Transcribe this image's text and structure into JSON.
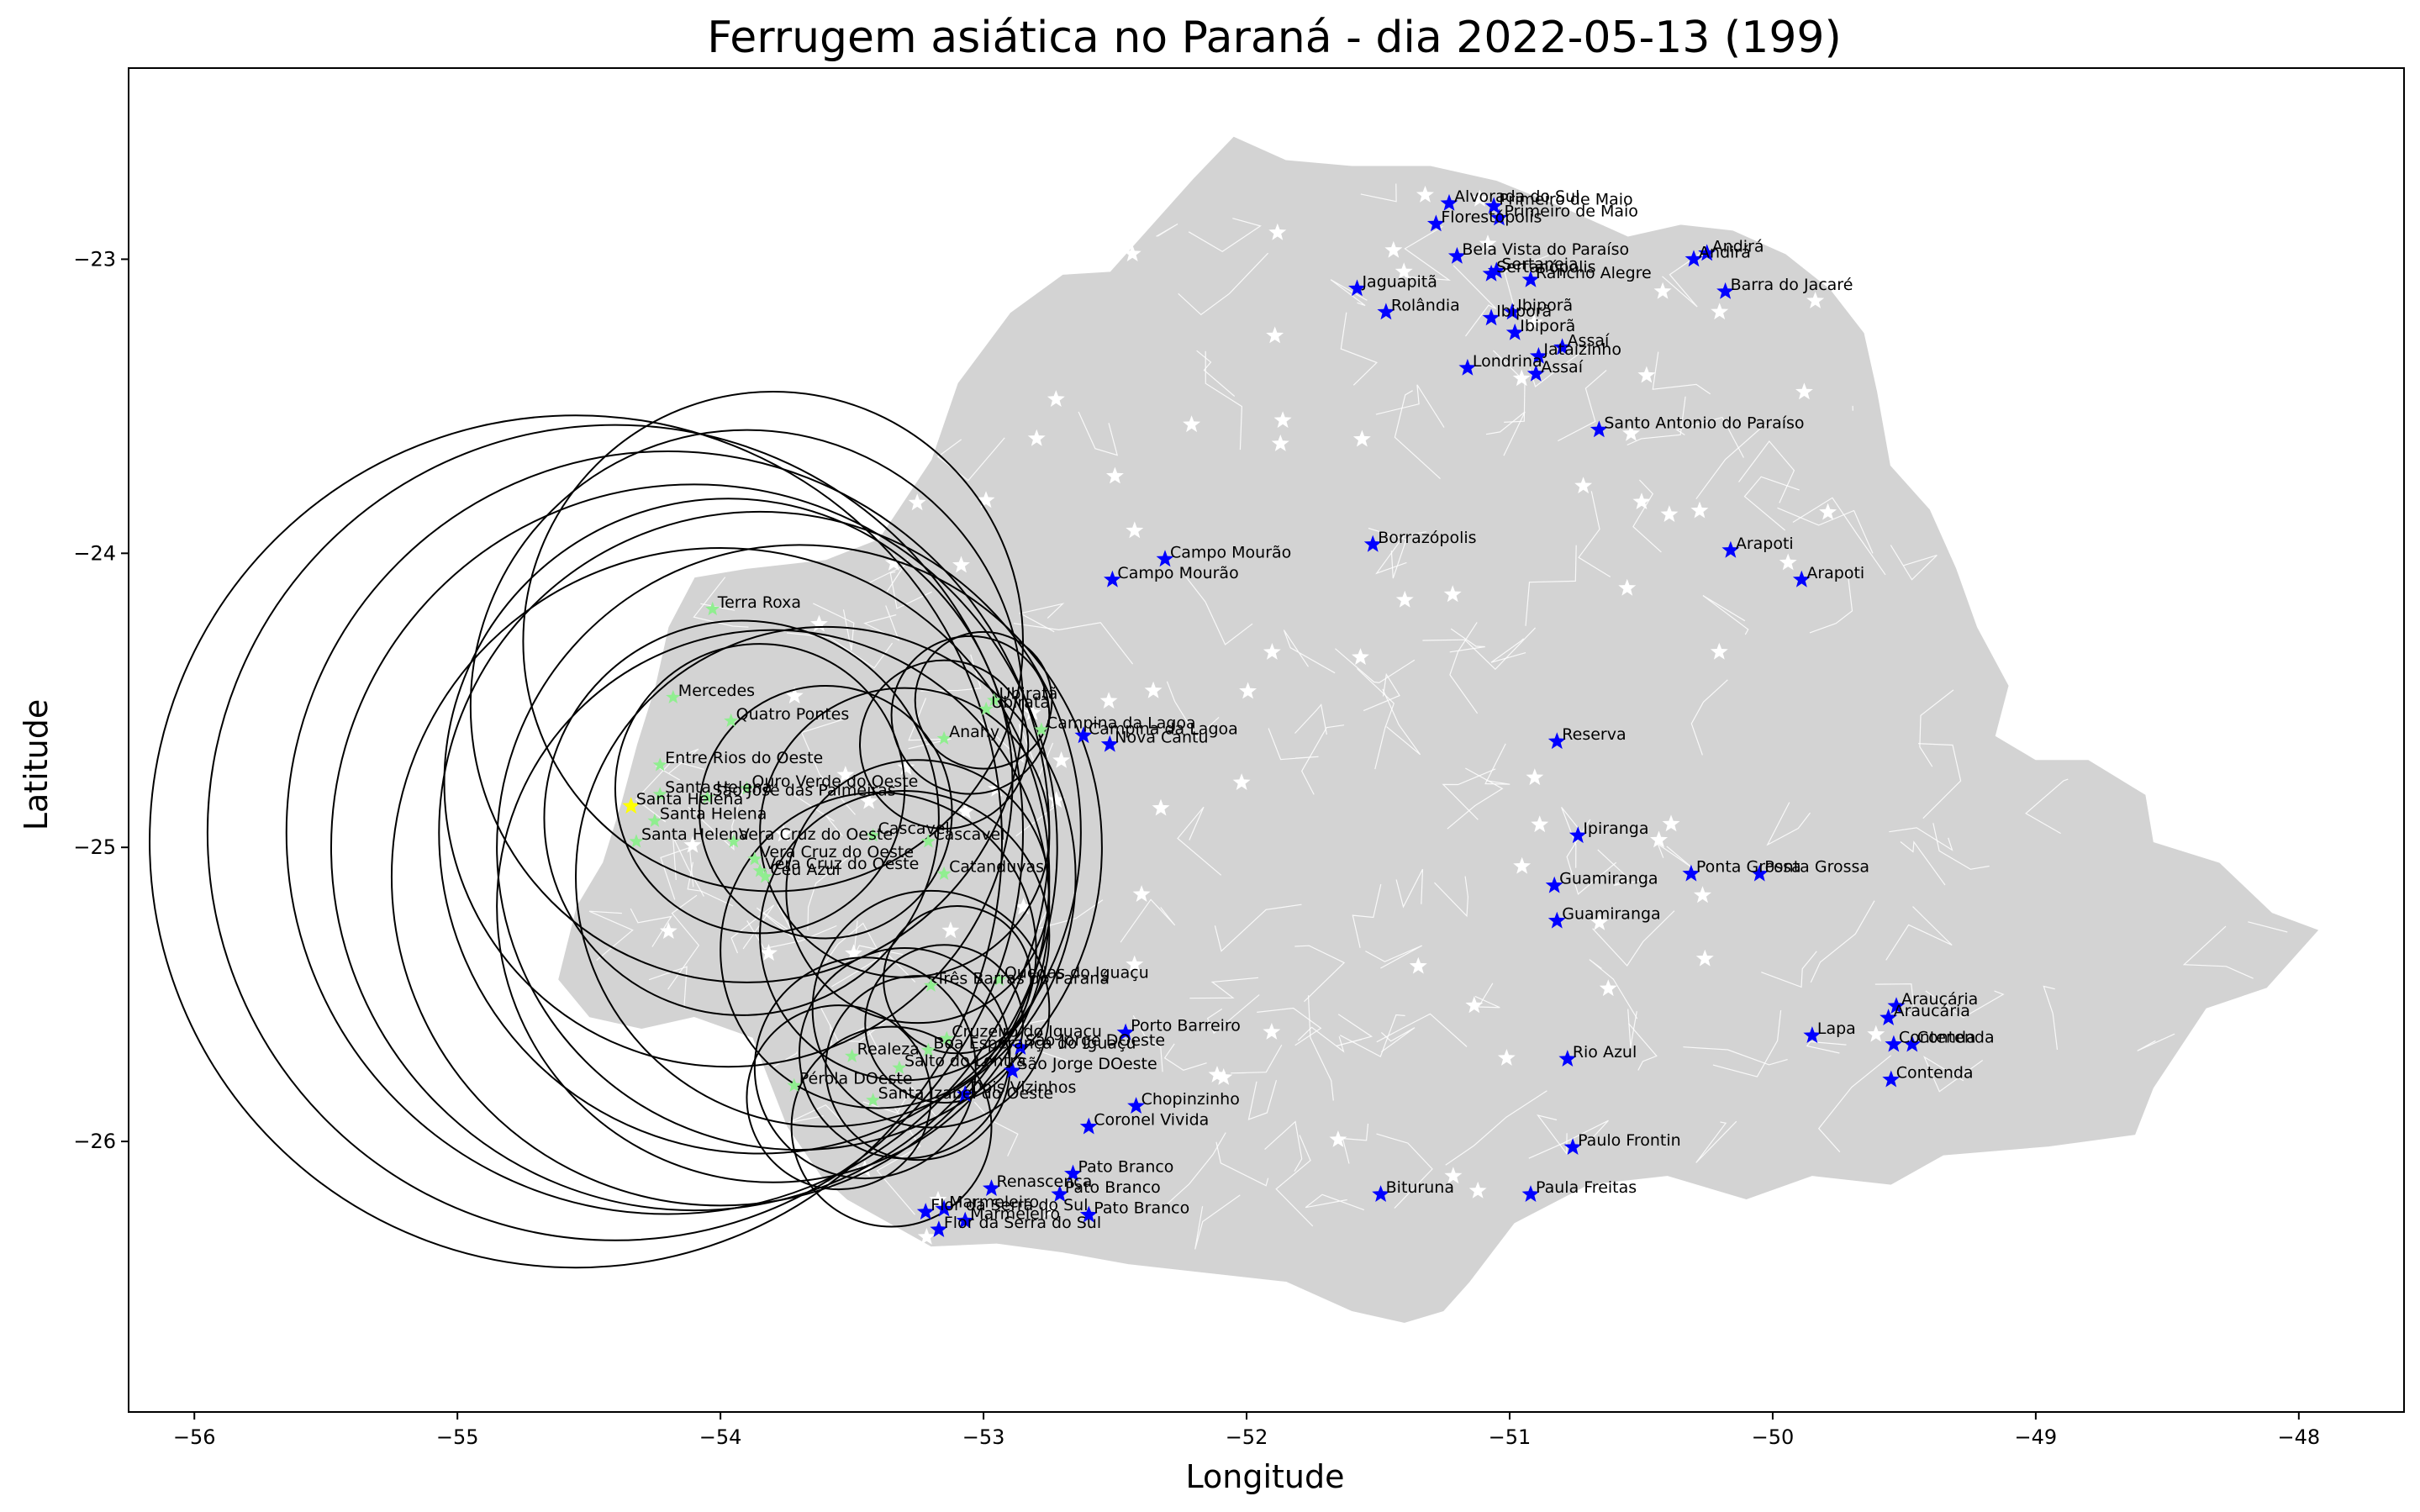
{
  "title": "Ferrugem asiática no Paraná - dia 2022-05-13 (199)",
  "colors": {
    "state_fill": "#d3d3d3",
    "borders": "#ffffff",
    "station_marker": "#0000ff",
    "green_marker": "#90ee90",
    "yellow_marker": "#ffff00",
    "circle_stroke": "#000000",
    "white_star": "#ffffff"
  },
  "chart_data": {
    "type": "scatter",
    "title": "Ferrugem asiática no Paraná - dia 2022-05-13 (199)",
    "xlabel": "Longitude",
    "ylabel": "Latitude",
    "xlim": [
      -56.25,
      -47.6
    ],
    "ylim": [
      -26.92,
      -22.35
    ],
    "xticks": [
      -56,
      -55,
      -54,
      -53,
      -52,
      -51,
      -50,
      -49,
      -48
    ],
    "yticks": [
      -23,
      -24,
      -25,
      -26
    ],
    "grid": false,
    "blue_stations": [
      {
        "name": "Alvorada do Sul",
        "lon": -51.23,
        "lat": -22.81
      },
      {
        "name": "Primeiro de Maio",
        "lon": -51.06,
        "lat": -22.82
      },
      {
        "name": "Primeiro de Maio",
        "lon": -51.04,
        "lat": -22.86
      },
      {
        "name": "Florestópolis",
        "lon": -51.28,
        "lat": -22.88
      },
      {
        "name": "Bela Vista do Paraíso",
        "lon": -51.2,
        "lat": -22.99
      },
      {
        "name": "Sertanópolis",
        "lon": -51.07,
        "lat": -23.05
      },
      {
        "name": "Sertaneja",
        "lon": -51.05,
        "lat": -23.04
      },
      {
        "name": "Rancho Alegre",
        "lon": -50.92,
        "lat": -23.07
      },
      {
        "name": "Andirá",
        "lon": -50.25,
        "lat": -22.98
      },
      {
        "name": "Andirá",
        "lon": -50.3,
        "lat": -23.0
      },
      {
        "name": "Barra do Jacaré",
        "lon": -50.18,
        "lat": -23.11
      },
      {
        "name": "Jaguapitã",
        "lon": -51.58,
        "lat": -23.1
      },
      {
        "name": "Rolândia",
        "lon": -51.47,
        "lat": -23.18
      },
      {
        "name": "Ibiporã",
        "lon": -50.99,
        "lat": -23.18
      },
      {
        "name": "Ibiporã",
        "lon": -51.07,
        "lat": -23.2
      },
      {
        "name": "Ibiporã",
        "lon": -50.98,
        "lat": -23.25
      },
      {
        "name": "Assaí",
        "lon": -50.8,
        "lat": -23.3
      },
      {
        "name": "Jataizinho",
        "lon": -50.89,
        "lat": -23.33
      },
      {
        "name": "Londrina",
        "lon": -51.16,
        "lat": -23.37
      },
      {
        "name": "Assaí",
        "lon": -50.9,
        "lat": -23.39
      },
      {
        "name": "Santo Antonio do Paraíso",
        "lon": -50.66,
        "lat": -23.58
      },
      {
        "name": "Borrazópolis",
        "lon": -51.52,
        "lat": -23.97
      },
      {
        "name": "Arapoti",
        "lon": -50.16,
        "lat": -23.99
      },
      {
        "name": "Campo Mourão",
        "lon": -52.31,
        "lat": -24.02
      },
      {
        "name": "Campo Mourão",
        "lon": -52.51,
        "lat": -24.09
      },
      {
        "name": "Arapoti",
        "lon": -49.89,
        "lat": -24.09
      },
      {
        "name": "Campina da Lagoa",
        "lon": -52.62,
        "lat": -24.62
      },
      {
        "name": "Nova Cantu",
        "lon": -52.52,
        "lat": -24.65
      },
      {
        "name": "Reserva",
        "lon": -50.82,
        "lat": -24.64
      },
      {
        "name": "Ipiranga",
        "lon": -50.74,
        "lat": -24.96
      },
      {
        "name": "Ponta Grossa",
        "lon": -50.31,
        "lat": -25.09
      },
      {
        "name": "Ponta Grossa",
        "lon": -50.05,
        "lat": -25.09
      },
      {
        "name": "Guamiranga",
        "lon": -50.83,
        "lat": -25.13
      },
      {
        "name": "Guamiranga",
        "lon": -50.82,
        "lat": -25.25
      },
      {
        "name": "Araucária",
        "lon": -49.53,
        "lat": -25.54
      },
      {
        "name": "Araucária",
        "lon": -49.56,
        "lat": -25.58
      },
      {
        "name": "Lapa",
        "lon": -49.85,
        "lat": -25.64
      },
      {
        "name": "Contenda",
        "lon": -49.54,
        "lat": -25.67
      },
      {
        "name": "Contenda",
        "lon": -49.47,
        "lat": -25.67
      },
      {
        "name": "Contenda",
        "lon": -49.55,
        "lat": -25.79
      },
      {
        "name": "Porto Barreiro",
        "lon": -52.46,
        "lat": -25.63
      },
      {
        "name": "São Jorge DOeste",
        "lon": -52.86,
        "lat": -25.68
      },
      {
        "name": "São Jorge DOeste",
        "lon": -52.89,
        "lat": -25.76
      },
      {
        "name": "Rio Azul",
        "lon": -50.78,
        "lat": -25.72
      },
      {
        "name": "Dois Vizinhos",
        "lon": -53.07,
        "lat": -25.84
      },
      {
        "name": "Chopinzinho",
        "lon": -52.42,
        "lat": -25.88
      },
      {
        "name": "Coronel Vivida",
        "lon": -52.6,
        "lat": -25.95
      },
      {
        "name": "Paulo Frontin",
        "lon": -50.76,
        "lat": -26.02
      },
      {
        "name": "Pato Branco",
        "lon": -52.66,
        "lat": -26.11
      },
      {
        "name": "Renascença",
        "lon": -52.97,
        "lat": -26.16
      },
      {
        "name": "Pato Branco",
        "lon": -52.71,
        "lat": -26.18
      },
      {
        "name": "Bituruna",
        "lon": -51.49,
        "lat": -26.18
      },
      {
        "name": "Paula Freitas",
        "lon": -50.92,
        "lat": -26.18
      },
      {
        "name": "Pato Branco",
        "lon": -52.6,
        "lat": -26.25
      },
      {
        "name": "Marmeleiro",
        "lon": -53.15,
        "lat": -26.23
      },
      {
        "name": "Flor da Serra do Sul",
        "lon": -53.22,
        "lat": -26.24
      },
      {
        "name": "Marmeleiro",
        "lon": -53.07,
        "lat": -26.27
      },
      {
        "name": "Flor da Serra do Sul",
        "lon": -53.17,
        "lat": -26.3
      }
    ],
    "green_stations": [
      {
        "name": "Terra Roxa",
        "lon": -54.03,
        "lat": -24.19
      },
      {
        "name": "Mercedes",
        "lon": -54.18,
        "lat": -24.49
      },
      {
        "name": "Quatro Pontes",
        "lon": -53.96,
        "lat": -24.57
      },
      {
        "name": "Ubiratã",
        "lon": -52.99,
        "lat": -24.53
      },
      {
        "name": "Ubiratã",
        "lon": -52.96,
        "lat": -24.5
      },
      {
        "name": "Anahy",
        "lon": -53.15,
        "lat": -24.63
      },
      {
        "name": "Campina da Lagoa",
        "lon": -52.78,
        "lat": -24.6
      },
      {
        "name": "Entre Rios do Oeste",
        "lon": -54.23,
        "lat": -24.72
      },
      {
        "name": "Santa Helena",
        "lon": -54.23,
        "lat": -24.82
      },
      {
        "name": "Ouro Verde do Oeste",
        "lon": -53.9,
        "lat": -24.8
      },
      {
        "name": "São José das Palmeiras",
        "lon": -54.05,
        "lat": -24.83
      },
      {
        "name": "Santa Helena",
        "lon": -54.25,
        "lat": -24.91
      },
      {
        "name": "Santa Helena",
        "lon": -54.32,
        "lat": -24.98
      },
      {
        "name": "Vera Cruz do Oeste",
        "lon": -53.95,
        "lat": -24.98
      },
      {
        "name": "Cascavel",
        "lon": -53.42,
        "lat": -24.96
      },
      {
        "name": "Cascavel",
        "lon": -53.21,
        "lat": -24.98
      },
      {
        "name": "Vera Cruz do Oeste",
        "lon": -53.87,
        "lat": -25.04
      },
      {
        "name": "Vera Cruz do Oeste",
        "lon": -53.85,
        "lat": -25.08
      },
      {
        "name": "Céu Azul",
        "lon": -53.83,
        "lat": -25.1
      },
      {
        "name": "Catanduvas",
        "lon": -53.15,
        "lat": -25.09
      },
      {
        "name": "Três Barras do Paraná",
        "lon": -53.2,
        "lat": -25.47
      },
      {
        "name": "Quedas do Iguaçu",
        "lon": -52.94,
        "lat": -25.45
      },
      {
        "name": "Cruzeiro do Iguaçu",
        "lon": -53.14,
        "lat": -25.65
      },
      {
        "name": "Boa Esperança do Iguaçu",
        "lon": -53.21,
        "lat": -25.69
      },
      {
        "name": "Realeza",
        "lon": -53.5,
        "lat": -25.71
      },
      {
        "name": "Salto do Lontra",
        "lon": -53.32,
        "lat": -25.75
      },
      {
        "name": "Pérola DOeste",
        "lon": -53.72,
        "lat": -25.81
      },
      {
        "name": "Santa Izabel do Oeste",
        "lon": -53.42,
        "lat": -25.86
      }
    ],
    "yellow_stations": [
      {
        "name": "Santa Helena",
        "lon": -54.34,
        "lat": -24.86
      }
    ],
    "circles": [
      {
        "lon": -53.97,
        "lat": -24.78,
        "r": 1.08
      },
      {
        "lon": -53.9,
        "lat": -24.52,
        "r": 1.05
      },
      {
        "lon": -53.8,
        "lat": -24.3,
        "r": 0.95
      },
      {
        "lon": -53.85,
        "lat": -24.95,
        "r": 1.22
      },
      {
        "lon": -54.0,
        "lat": -25.1,
        "r": 1.25
      },
      {
        "lon": -54.1,
        "lat": -25.0,
        "r": 1.38
      },
      {
        "lon": -54.2,
        "lat": -24.95,
        "r": 1.45
      },
      {
        "lon": -54.4,
        "lat": -24.95,
        "r": 1.55
      },
      {
        "lon": -54.55,
        "lat": -24.98,
        "r": 1.62
      },
      {
        "lon": -53.7,
        "lat": -25.0,
        "r": 1.15
      },
      {
        "lon": -53.8,
        "lat": -25.2,
        "r": 1.05
      },
      {
        "lon": -53.6,
        "lat": -25.1,
        "r": 0.95
      },
      {
        "lon": -53.92,
        "lat": -24.9,
        "r": 0.75
      },
      {
        "lon": -53.85,
        "lat": -24.8,
        "r": 0.55
      },
      {
        "lon": -53.6,
        "lat": -24.88,
        "r": 0.48
      },
      {
        "lon": -53.3,
        "lat": -24.95,
        "r": 0.55
      },
      {
        "lon": -53.25,
        "lat": -25.15,
        "r": 0.5
      },
      {
        "lon": -53.15,
        "lat": -24.65,
        "r": 0.32
      },
      {
        "lon": -53.05,
        "lat": -24.55,
        "r": 0.3
      },
      {
        "lon": -53.0,
        "lat": -24.5,
        "r": 0.26
      },
      {
        "lon": -53.3,
        "lat": -25.3,
        "r": 0.55
      },
      {
        "lon": -53.2,
        "lat": -25.55,
        "r": 0.45
      },
      {
        "lon": -53.3,
        "lat": -25.7,
        "r": 0.4
      },
      {
        "lon": -53.45,
        "lat": -25.75,
        "r": 0.42
      },
      {
        "lon": -53.55,
        "lat": -25.85,
        "r": 0.35
      },
      {
        "lon": -53.25,
        "lat": -25.75,
        "r": 0.35
      },
      {
        "lon": -53.15,
        "lat": -25.6,
        "r": 0.3
      },
      {
        "lon": -53.1,
        "lat": -25.45,
        "r": 0.28
      },
      {
        "lon": -53.35,
        "lat": -25.95,
        "r": 0.38
      },
      {
        "lon": -53.4,
        "lat": -25.35,
        "r": 0.6
      }
    ]
  }
}
